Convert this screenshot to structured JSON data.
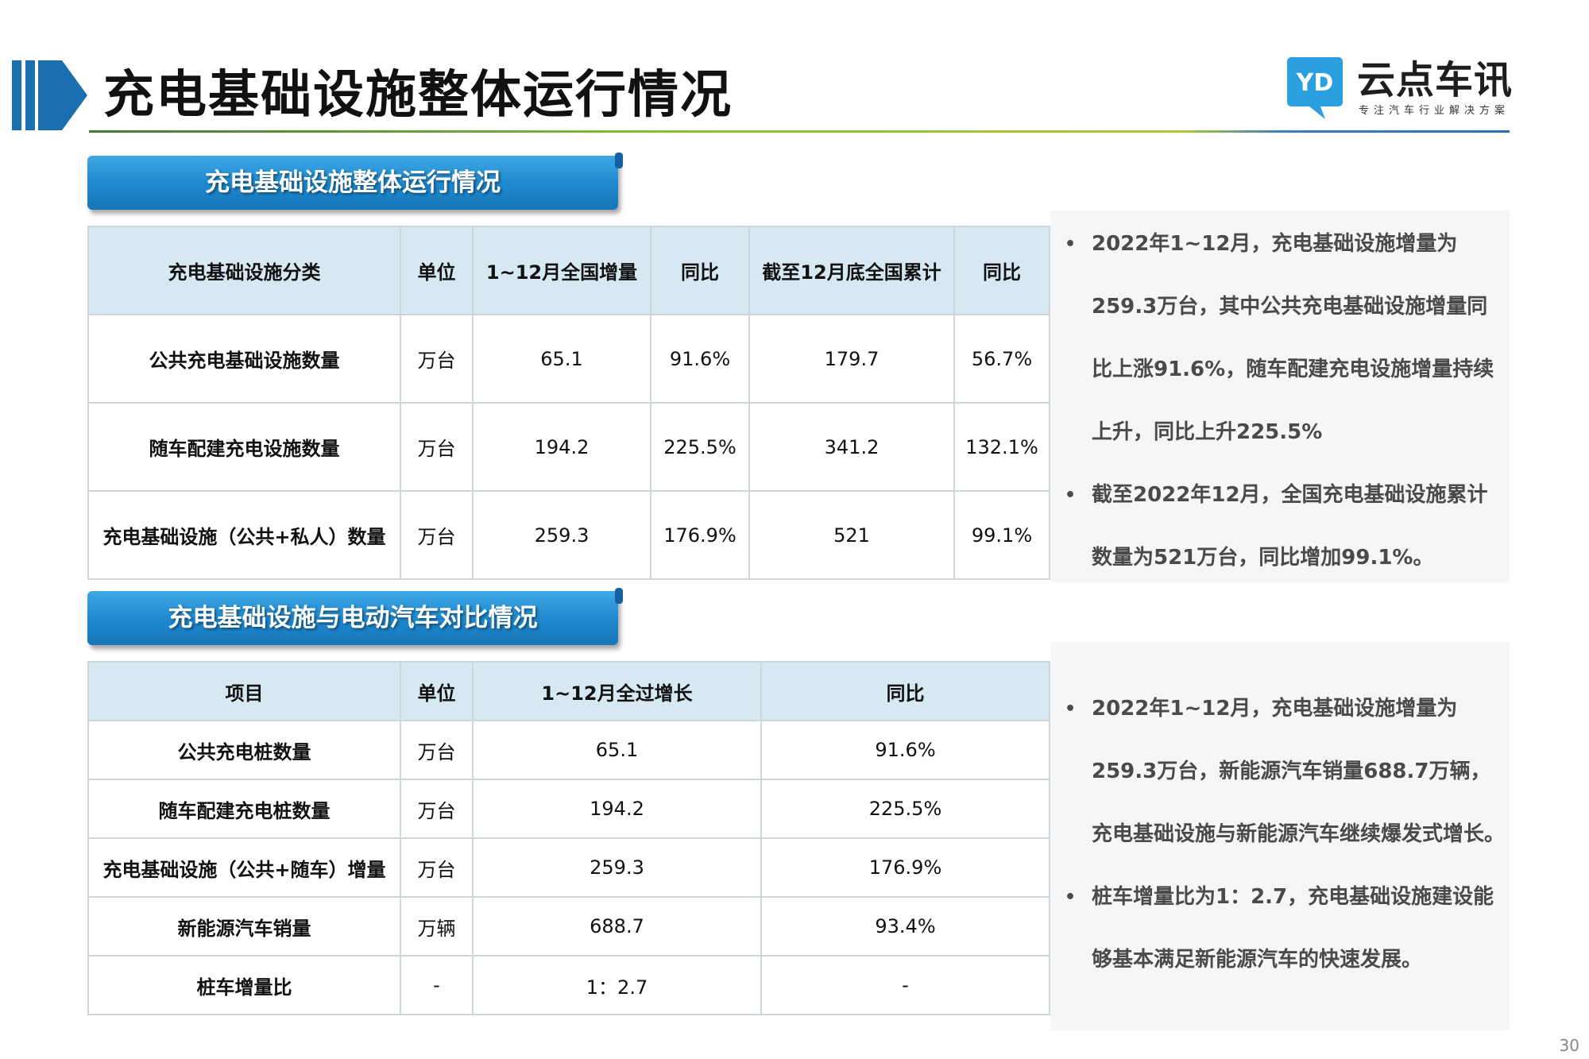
{
  "header": {
    "title": "充电基础设施整体运行情况",
    "logo_name": "云点车讯",
    "logo_tagline": "专注汽车行业解决方案",
    "logo_mark_text": "YD"
  },
  "section1": {
    "banner": "充电基础设施整体运行情况",
    "table": {
      "headers": [
        "充电基础设施分类",
        "单位",
        "1~12月全国增量",
        "同比",
        "截至12月底全国累计",
        "同比"
      ],
      "rows": [
        [
          "公共充电基础设施数量",
          "万台",
          "65.1",
          "91.6%",
          "179.7",
          "56.7%"
        ],
        [
          "随车配建充电设施数量",
          "万台",
          "194.2",
          "225.5%",
          "341.2",
          "132.1%"
        ],
        [
          "充电基础设施（公共+私人）数量",
          "万台",
          "259.3",
          "176.9%",
          "521",
          "99.1%"
        ]
      ]
    },
    "notes": [
      {
        "bullet": "•",
        "lines": [
          "2022年1~12月，充电基础设施增量为",
          "259.3万台，其中公共充电基础设施增量同",
          "比上涨91.6%，随车配建充电设施增量持续",
          "上升，同比上升225.5%"
        ]
      },
      {
        "bullet": "•",
        "lines": [
          "截至2022年12月，全国充电基础设施累计",
          "数量为521万台，同比增加99.1%。"
        ]
      }
    ]
  },
  "section2": {
    "banner": "充电基础设施与电动汽车对比情况",
    "table": {
      "headers": [
        "项目",
        "单位",
        "1~12月全过增长",
        "同比"
      ],
      "rows": [
        [
          "公共充电桩数量",
          "万台",
          "65.1",
          "91.6%"
        ],
        [
          "随车配建充电桩数量",
          "万台",
          "194.2",
          "225.5%"
        ],
        [
          "充电基础设施（公共+随车）增量",
          "万台",
          "259.3",
          "176.9%"
        ],
        [
          "新能源汽车销量",
          "万辆",
          "688.7",
          "93.4%"
        ],
        [
          "桩车增量比",
          "-",
          "1：2.7",
          "-"
        ]
      ]
    },
    "notes": [
      {
        "bullet": "•",
        "lines": [
          "2022年1~12月，充电基础设施增量为",
          "259.3万台，新能源汽车销量688.7万辆，",
          "充电基础设施与新能源汽车继续爆发式增长。"
        ]
      },
      {
        "bullet": "•",
        "lines": [
          "桩车增量比为1：2.7，充电基础设施建设能",
          "够基本满足新能源汽车的快速发展。"
        ]
      }
    ]
  },
  "page_number": "30",
  "colors": {
    "accent_blue": "#1a6fb0",
    "banner_blue": "#1f8ad0",
    "header_cell": "#d6e9f3",
    "title_rule_green": "#8cbf3a"
  },
  "icons": [
    "header-arrow-icon",
    "logo-speech-bubble-icon",
    "bullet-dot-icon"
  ]
}
